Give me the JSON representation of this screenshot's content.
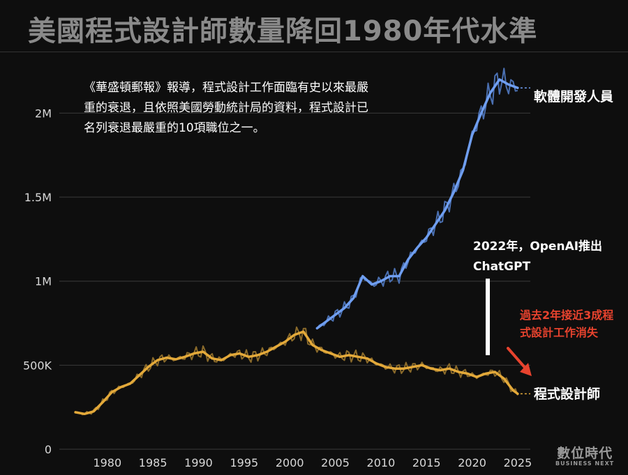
{
  "title": "美國程式設計師數量降回1980年代水準",
  "annotations": {
    "wapo_note": "《華盛頓郵報》報導，程式設計工作面臨有史以來最嚴重的衰退，且依照美國勞動統計局的資料，程式設計已名列衰退最嚴重的10項職位之一。",
    "chatgpt_note": "2022年，OpenAI推出ChatGPT",
    "loss_note": "過去2年接近3成程式設計工作消失"
  },
  "logo": {
    "main": "數位時代",
    "sub": "BUSINESS NEXT"
  },
  "colors": {
    "software": "#6f9ef0",
    "software_raw": "#4a6fb0",
    "programmer": "#e3a93a",
    "programmer_raw": "#8a6a2a",
    "loss_arrow": "#e8432e",
    "grid": "#3a3a3a",
    "axis_text": "#d8d8d8"
  },
  "chart_data": {
    "type": "line",
    "title": "美國程式設計師數量降回1980年代水準",
    "xlabel": "",
    "ylabel": "",
    "xlim": [
      1975.5,
      2026
    ],
    "ylim": [
      0,
      2300000
    ],
    "xticks": [
      1980,
      1985,
      1990,
      1995,
      2000,
      2005,
      2010,
      2015,
      2020,
      2025
    ],
    "xtick_labels": [
      "1980",
      "1985",
      "1990",
      "1995",
      "2000",
      "2005",
      "2010",
      "2015",
      "2020",
      "2025"
    ],
    "yticks": [
      0,
      500000,
      1000000,
      1500000,
      2000000
    ],
    "ytick_labels": [
      "0",
      "500K",
      "1M",
      "1.5M",
      "2M"
    ],
    "grid": true,
    "series": [
      {
        "name": "軟體開發人員",
        "points": [
          [
            2003.0,
            720000
          ],
          [
            2004.0,
            760000
          ],
          [
            2005.0,
            800000
          ],
          [
            2006.0,
            840000
          ],
          [
            2007.0,
            900000
          ],
          [
            2008.0,
            1030000
          ],
          [
            2009.0,
            980000
          ],
          [
            2010.0,
            1000000
          ],
          [
            2011.0,
            1030000
          ],
          [
            2012.0,
            1030000
          ],
          [
            2013.0,
            1130000
          ],
          [
            2014.0,
            1200000
          ],
          [
            2015.0,
            1260000
          ],
          [
            2016.0,
            1340000
          ],
          [
            2017.0,
            1420000
          ],
          [
            2018.0,
            1530000
          ],
          [
            2019.0,
            1660000
          ],
          [
            2020.0,
            1870000
          ],
          [
            2021.0,
            2000000
          ],
          [
            2022.0,
            2120000
          ],
          [
            2023.0,
            2200000
          ],
          [
            2024.0,
            2170000
          ],
          [
            2025.0,
            2150000
          ]
        ]
      },
      {
        "name": "程式設計師",
        "points": [
          [
            1976.5,
            220000
          ],
          [
            1977.5,
            210000
          ],
          [
            1978.5,
            225000
          ],
          [
            1979.5,
            280000
          ],
          [
            1980.5,
            340000
          ],
          [
            1981.5,
            370000
          ],
          [
            1982.5,
            390000
          ],
          [
            1983.5,
            440000
          ],
          [
            1984.5,
            490000
          ],
          [
            1985.5,
            530000
          ],
          [
            1986.5,
            545000
          ],
          [
            1987.5,
            535000
          ],
          [
            1988.5,
            550000
          ],
          [
            1989.5,
            570000
          ],
          [
            1990.5,
            580000
          ],
          [
            1991.5,
            540000
          ],
          [
            1992.5,
            530000
          ],
          [
            1993.5,
            560000
          ],
          [
            1994.5,
            570000
          ],
          [
            1995.5,
            550000
          ],
          [
            1996.5,
            560000
          ],
          [
            1997.5,
            580000
          ],
          [
            1998.5,
            610000
          ],
          [
            1999.5,
            640000
          ],
          [
            2000.5,
            680000
          ],
          [
            2001.5,
            700000
          ],
          [
            2002.5,
            620000
          ],
          [
            2003.5,
            590000
          ],
          [
            2004.5,
            570000
          ],
          [
            2005.5,
            550000
          ],
          [
            2006.5,
            560000
          ],
          [
            2007.5,
            550000
          ],
          [
            2008.5,
            540000
          ],
          [
            2009.5,
            510000
          ],
          [
            2010.5,
            490000
          ],
          [
            2011.5,
            480000
          ],
          [
            2012.5,
            480000
          ],
          [
            2013.5,
            490000
          ],
          [
            2014.5,
            500000
          ],
          [
            2015.5,
            480000
          ],
          [
            2016.5,
            470000
          ],
          [
            2017.5,
            480000
          ],
          [
            2018.5,
            460000
          ],
          [
            2019.5,
            450000
          ],
          [
            2020.5,
            430000
          ],
          [
            2021.5,
            450000
          ],
          [
            2022.5,
            460000
          ],
          [
            2023.5,
            420000
          ],
          [
            2024.5,
            350000
          ],
          [
            2025.0,
            330000
          ]
        ]
      }
    ],
    "annotations": [
      {
        "text": "2022年，OpenAI推出ChatGPT",
        "x": 2022
      },
      {
        "text": "過去2年接近3成程式設計工作消失"
      }
    ]
  }
}
